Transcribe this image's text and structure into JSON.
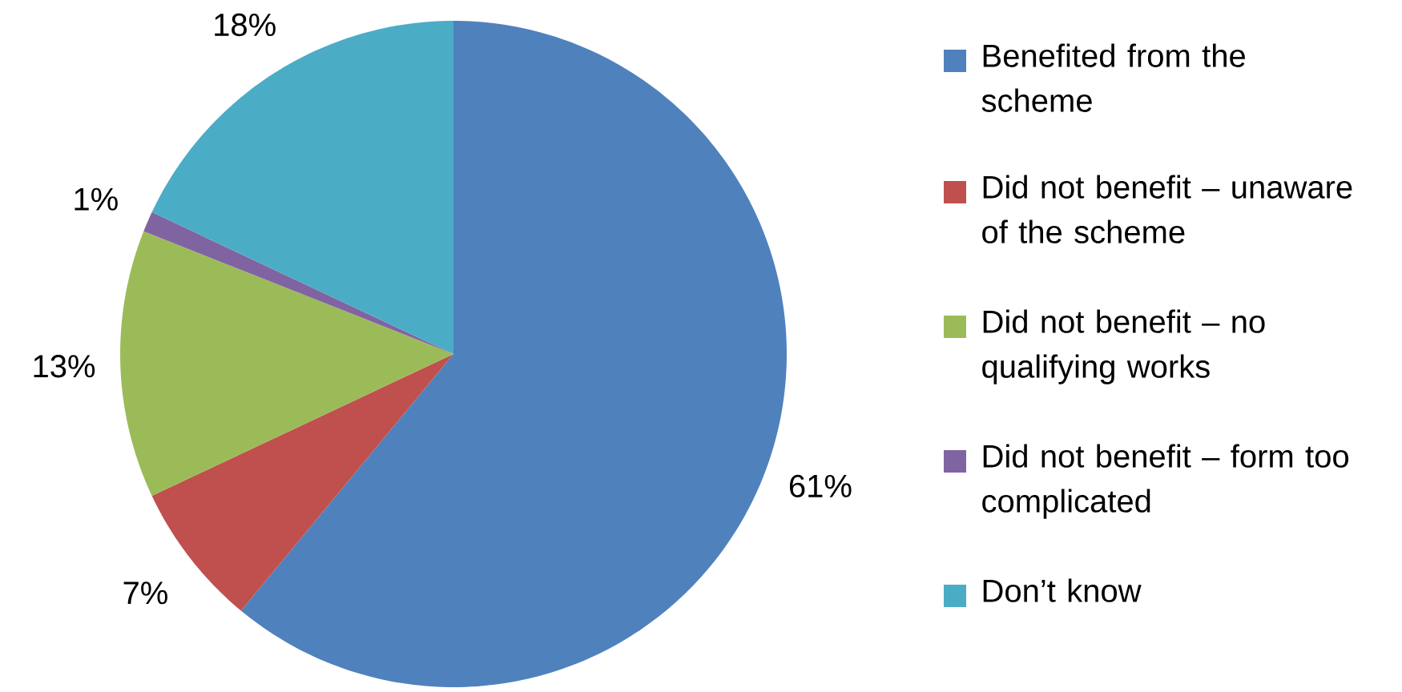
{
  "chart_data": {
    "type": "pie",
    "categories": [
      "Benefited from the scheme",
      "Did not benefit – unaware of the scheme",
      "Did not benefit – no qualifying works",
      "Did not benefit – form too complicated",
      "Don’t know"
    ],
    "values": [
      61,
      7,
      13,
      1,
      18
    ],
    "colors": [
      "#4f81bd",
      "#c0504d",
      "#9bbb59",
      "#8064a2",
      "#4bacc6"
    ],
    "value_labels": [
      "61%",
      "7%",
      "13%",
      "1%",
      "18%"
    ],
    "legend": "right"
  }
}
